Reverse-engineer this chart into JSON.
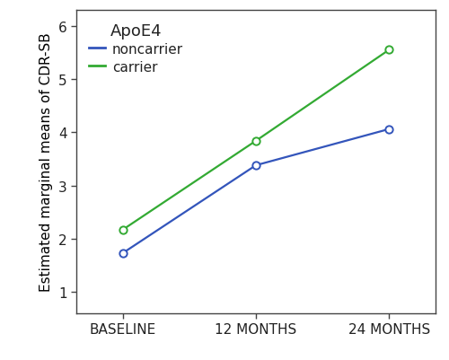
{
  "x_labels": [
    "BASELINE",
    "12 MONTHS",
    "24 MONTHS"
  ],
  "x_positions": [
    0,
    1,
    2
  ],
  "noncarrier_values": [
    1.73,
    3.38,
    4.06
  ],
  "carrier_values": [
    2.17,
    3.84,
    5.55
  ],
  "noncarrier_color": "#3355bb",
  "carrier_color": "#33aa33",
  "ylabel": "Estimated marginal means of CDR-SB",
  "ylim": [
    0.6,
    6.3
  ],
  "yticks": [
    1,
    2,
    3,
    4,
    5,
    6
  ],
  "legend_title": "ApoE4",
  "legend_noncarrier": "noncarrier",
  "legend_carrier": "carrier",
  "bg_color": "#ffffff",
  "marker": "o",
  "markersize": 6,
  "linewidth": 1.6,
  "label_fontsize": 11,
  "tick_fontsize": 11,
  "legend_fontsize": 11,
  "legend_title_fontsize": 13
}
